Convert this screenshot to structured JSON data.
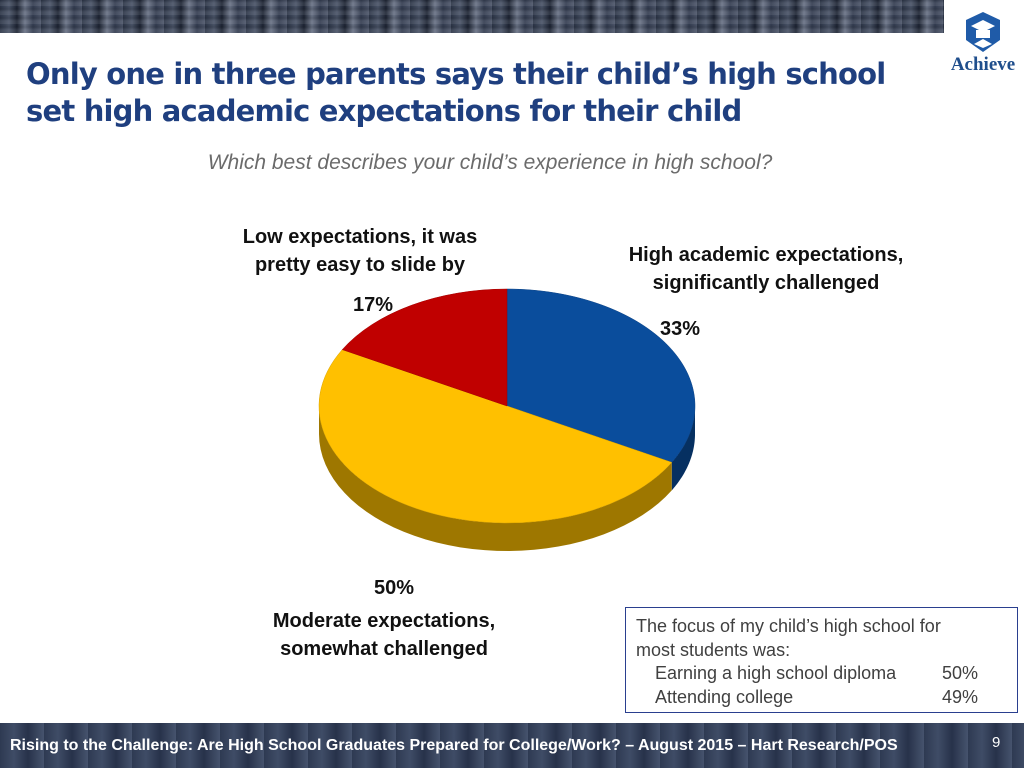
{
  "header": {
    "title_line1": "Only one in three parents says their child’s high school",
    "title_line2": "set high academic expectations for their child",
    "subtitle": "Which best describes your child’s experience in high school?"
  },
  "logo": {
    "text": "Achieve"
  },
  "chart_data": {
    "type": "pie",
    "title": "Which best describes your child’s experience in high school?",
    "slices": [
      {
        "label_line1": "High academic expectations,",
        "label_line2": "significantly challenged",
        "value": 33,
        "value_label": "33%",
        "color": "#0a4d9c"
      },
      {
        "label_line1": "Moderate expectations,",
        "label_line2": "somewhat challenged",
        "value": 50,
        "value_label": "50%",
        "color": "#ffc000"
      },
      {
        "label_line1": "Low expectations, it was",
        "label_line2": "pretty easy to slide by",
        "value": 17,
        "value_label": "17%",
        "color": "#c00000"
      }
    ],
    "start_angle_degrees": 0,
    "direction": "clockwise",
    "style": "3d"
  },
  "note": {
    "title_line1": "The focus of my child’s high school for",
    "title_line2": "most students was:",
    "rows": [
      {
        "label": "Earning a high school diploma",
        "value": "50%"
      },
      {
        "label": "Attending college",
        "value": "49%"
      }
    ]
  },
  "footer": {
    "text": "Rising to the Challenge:  Are High School Graduates Prepared for College/Work? – August 2015 – Hart Research/POS",
    "page_number": "9"
  }
}
